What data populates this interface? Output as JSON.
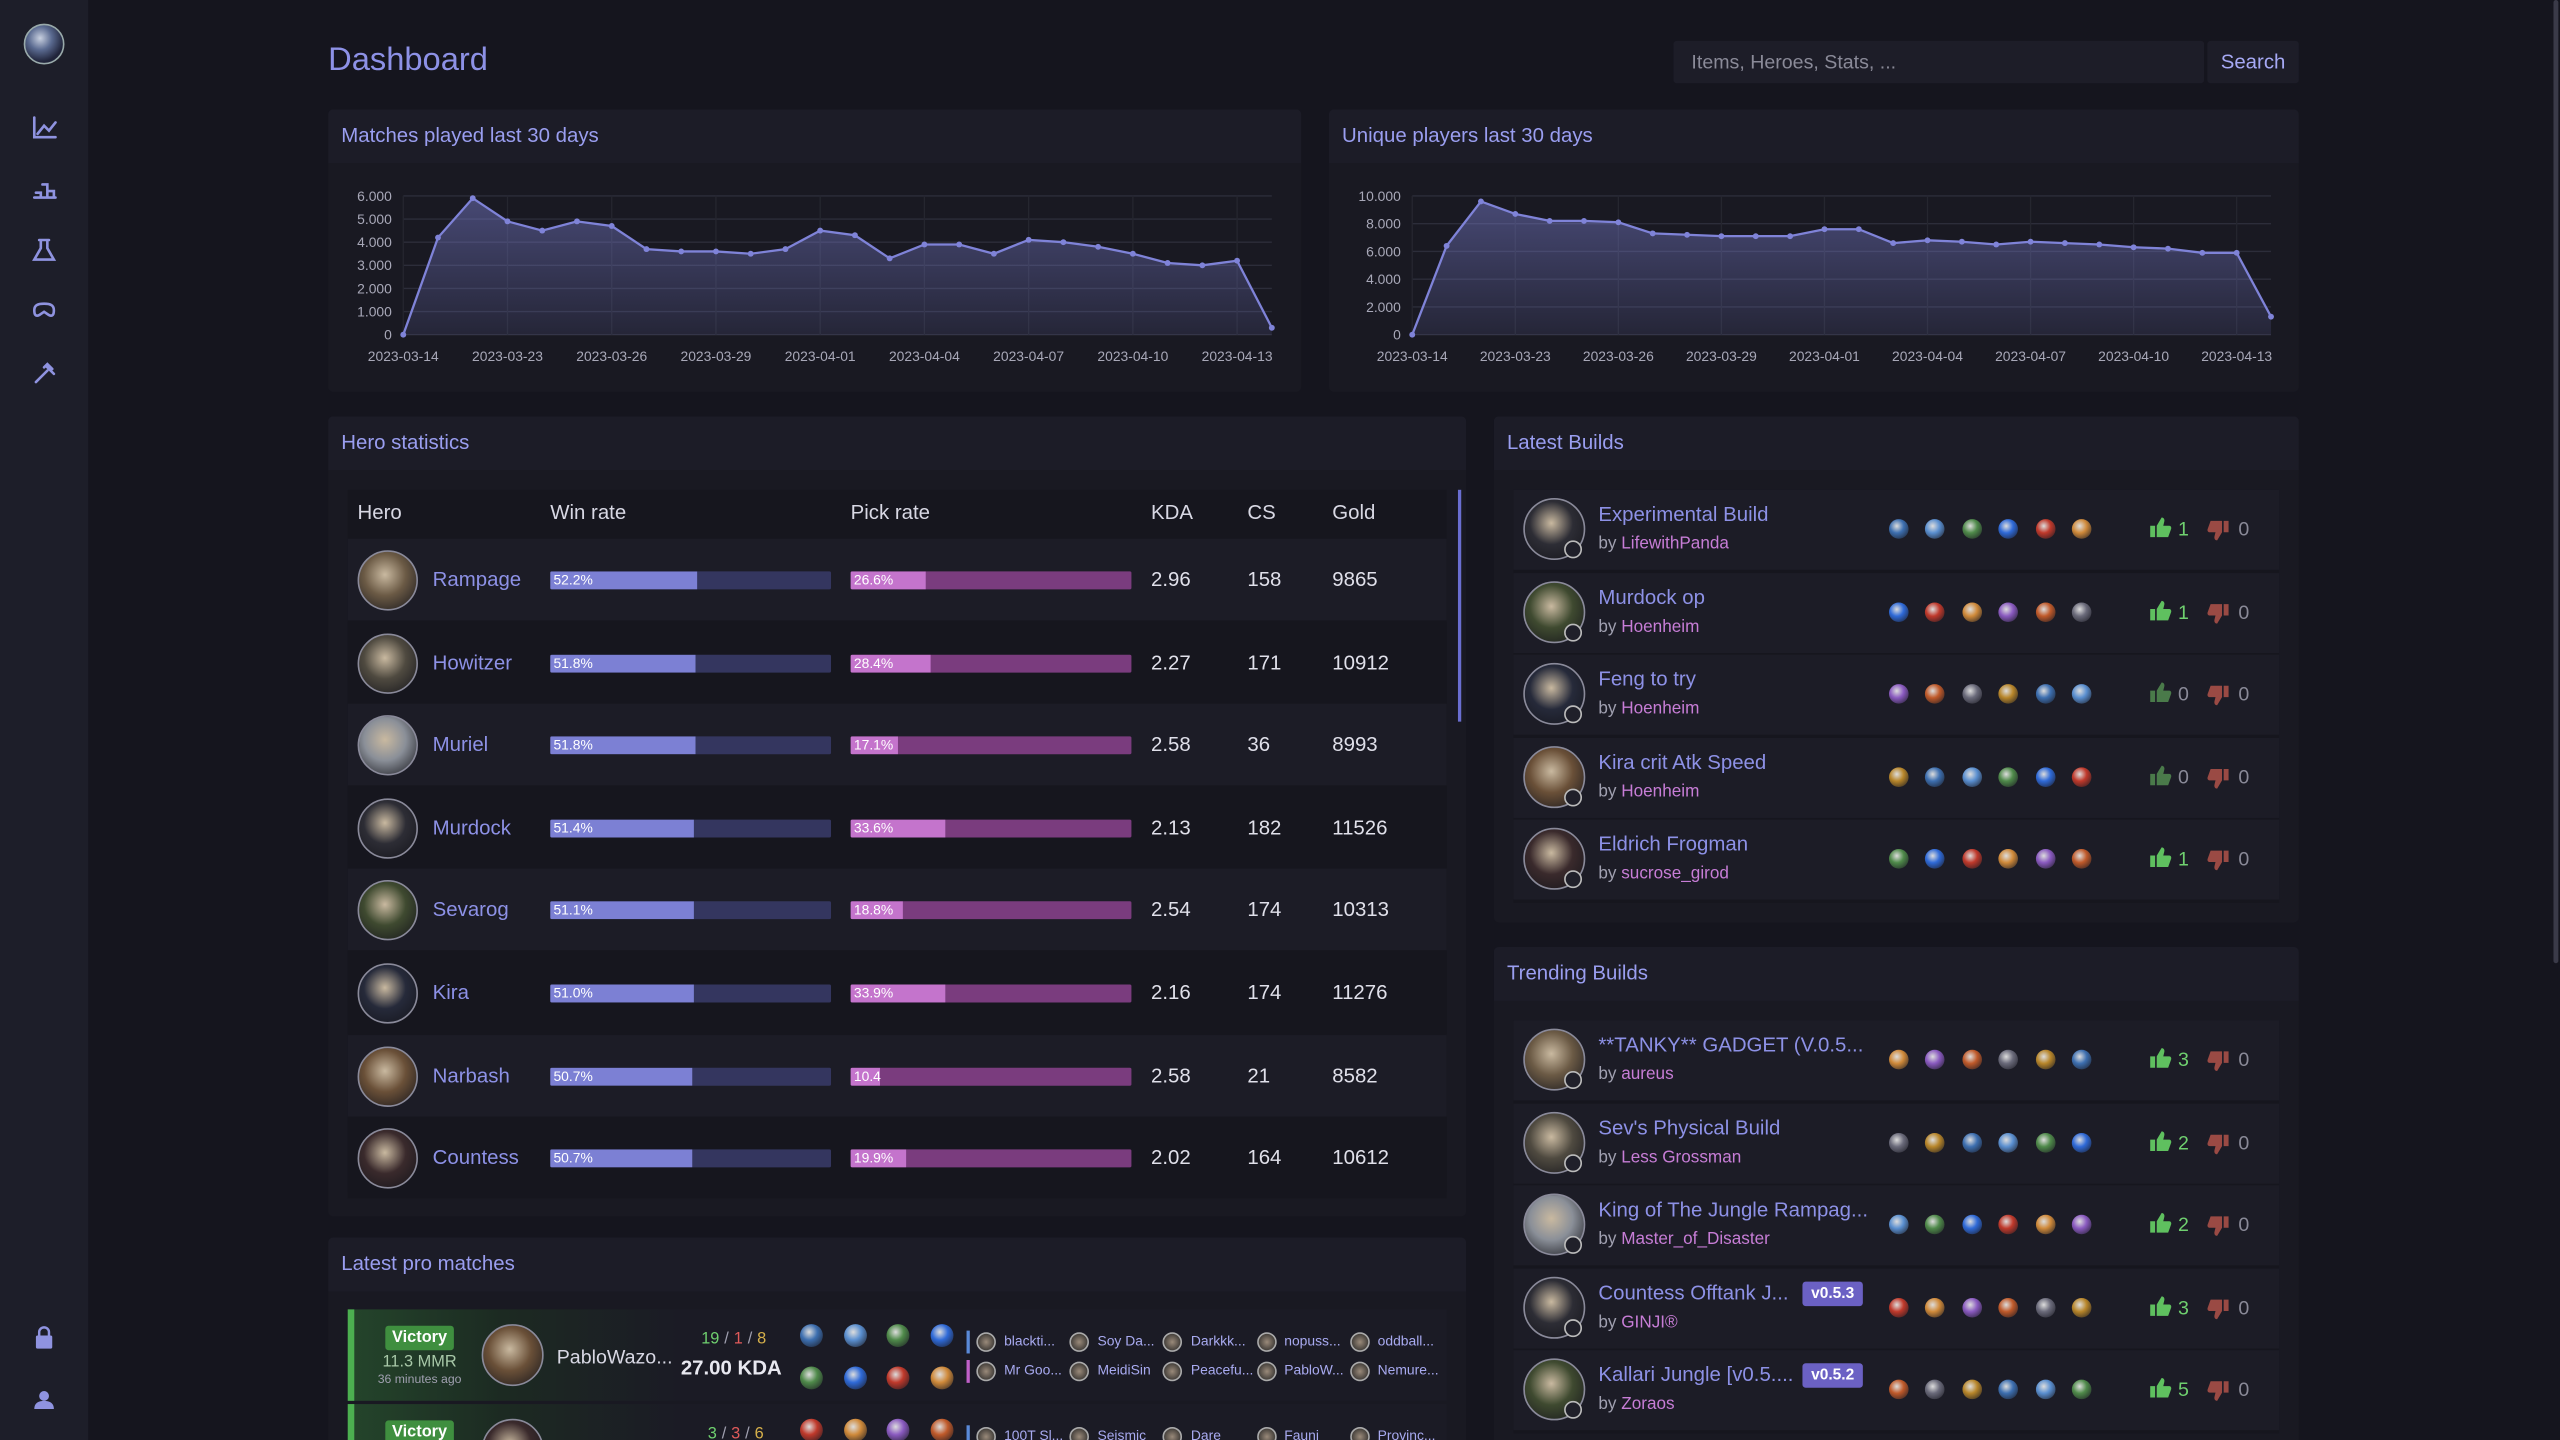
{
  "header": {
    "title": "Dashboard",
    "search_placeholder": "Items, Heroes, Stats, ...",
    "search_button": "Search"
  },
  "chart_data": [
    {
      "type": "area",
      "title": "Matches played last 30 days",
      "color": "#7f83d8",
      "grid": true,
      "categories": [
        "2023-03-14",
        null,
        null,
        "2023-03-23",
        null,
        null,
        "2023-03-26",
        null,
        null,
        "2023-03-29",
        null,
        null,
        "2023-04-01",
        null,
        null,
        "2023-04-04",
        null,
        null,
        "2023-04-07",
        null,
        null,
        "2023-04-10",
        null,
        null,
        "2023-04-13",
        null
      ],
      "values": [
        0,
        4200,
        5900,
        4900,
        4500,
        4900,
        4700,
        3700,
        3600,
        3600,
        3500,
        3700,
        4500,
        4300,
        3300,
        3900,
        3900,
        3500,
        4100,
        4000,
        3800,
        3500,
        3100,
        3000,
        3200,
        300
      ],
      "ylim": [
        0,
        6000
      ],
      "yticks": [
        0,
        {
          "value": 1000,
          "label": "1.000"
        },
        {
          "value": 2000,
          "label": "2.000"
        },
        {
          "value": 3000,
          "label": "3.000"
        },
        {
          "value": 4000,
          "label": "4.000"
        },
        {
          "value": 5000,
          "label": "5.000"
        },
        {
          "value": 6000,
          "label": "6.000"
        }
      ]
    },
    {
      "type": "area",
      "title": "Unique players last 30 days",
      "color": "#7f83d8",
      "grid": true,
      "categories": [
        "2023-03-14",
        null,
        null,
        "2023-03-23",
        null,
        null,
        "2023-03-26",
        null,
        null,
        "2023-03-29",
        null,
        null,
        "2023-04-01",
        null,
        null,
        "2023-04-04",
        null,
        null,
        "2023-04-07",
        null,
        null,
        "2023-04-10",
        null,
        null,
        "2023-04-13",
        null
      ],
      "values": [
        0,
        6400,
        9600,
        8700,
        8200,
        8200,
        8100,
        7300,
        7200,
        7100,
        7100,
        7100,
        7600,
        7600,
        6600,
        6800,
        6700,
        6500,
        6700,
        6600,
        6500,
        6300,
        6200,
        5900,
        5900,
        1300
      ],
      "ylim": [
        0,
        10000
      ],
      "yticks": [
        0,
        {
          "value": 2000,
          "label": "2.000"
        },
        {
          "value": 4000,
          "label": "4.000"
        },
        {
          "value": 6000,
          "label": "6.000"
        },
        {
          "value": 8000,
          "label": "8.000"
        },
        {
          "value": 10000,
          "label": "10.000"
        }
      ]
    }
  ],
  "hero_statistics": {
    "title": "Hero statistics",
    "columns": [
      "Hero",
      "Win rate",
      "Pick rate",
      "KDA",
      "CS",
      "Gold"
    ],
    "rows": [
      {
        "hero": "Rampage",
        "win_rate": {
          "value": 52.2,
          "label": "52.2%"
        },
        "pick_rate": {
          "value": 26.6,
          "label": "26.6%"
        },
        "kda": 2.96,
        "cs": 158,
        "gold": 9865
      },
      {
        "hero": "Howitzer",
        "win_rate": {
          "value": 51.8,
          "label": "51.8%"
        },
        "pick_rate": {
          "value": 28.4,
          "label": "28.4%"
        },
        "kda": 2.27,
        "cs": 171,
        "gold": 10912
      },
      {
        "hero": "Muriel",
        "win_rate": {
          "value": 51.8,
          "label": "51.8%"
        },
        "pick_rate": {
          "value": 17.1,
          "label": "17.1%"
        },
        "kda": 2.58,
        "cs": 36,
        "gold": 8993
      },
      {
        "hero": "Murdock",
        "win_rate": {
          "value": 51.4,
          "label": "51.4%"
        },
        "pick_rate": {
          "value": 33.6,
          "label": "33.6%"
        },
        "kda": 2.13,
        "cs": 182,
        "gold": 11526
      },
      {
        "hero": "Sevarog",
        "win_rate": {
          "value": 51.1,
          "label": "51.1%"
        },
        "pick_rate": {
          "value": 18.8,
          "label": "18.8%"
        },
        "kda": 2.54,
        "cs": 174,
        "gold": 10313
      },
      {
        "hero": "Kira",
        "win_rate": {
          "value": 51,
          "label": "51.0%"
        },
        "pick_rate": {
          "value": 33.9,
          "label": "33.9%"
        },
        "kda": 2.16,
        "cs": 174,
        "gold": 11276
      },
      {
        "hero": "Narbash",
        "win_rate": {
          "value": 50.7,
          "label": "50.7%"
        },
        "pick_rate": {
          "value": 10.4,
          "label": "10.4"
        },
        "kda": 2.58,
        "cs": 21,
        "gold": 8582
      },
      {
        "hero": "Countess",
        "win_rate": {
          "value": 50.7,
          "label": "50.7%"
        },
        "pick_rate": {
          "value": 19.9,
          "label": "19.9%"
        },
        "kda": 2.02,
        "cs": 164,
        "gold": 10612
      }
    ]
  },
  "by": "by",
  "latest_builds": {
    "title": "Latest Builds",
    "builds": [
      {
        "name": "Experimental Build",
        "author": "LifewithPanda",
        "upvotes": 1,
        "downvotes": 0
      },
      {
        "name": "Murdock op",
        "author": "Hoenheim",
        "upvotes": 1,
        "downvotes": 0
      },
      {
        "name": "Feng to try",
        "author": "Hoenheim",
        "upvotes": 0,
        "downvotes": 0
      },
      {
        "name": "Kira crit Atk Speed",
        "author": "Hoenheim",
        "upvotes": 0,
        "downvotes": 0
      },
      {
        "name": "Eldrich Frogman",
        "author": "sucrose_girod",
        "upvotes": 1,
        "downvotes": 0
      }
    ]
  },
  "trending_builds": {
    "title": "Trending Builds",
    "builds": [
      {
        "name": "**TANKY** GADGET (V.0.5...",
        "author": "aureus",
        "upvotes": 3,
        "downvotes": 0
      },
      {
        "name": "Sev's Physical Build",
        "author": "Less Grossman",
        "upvotes": 2,
        "downvotes": 0
      },
      {
        "name": "King of The Jungle Rampag...",
        "author": "Master_of_Disaster",
        "upvotes": 2,
        "downvotes": 0
      },
      {
        "name": "Countess Offtank J...",
        "author": "GINJI®",
        "version": "v0.5.3",
        "upvotes": 3,
        "downvotes": 0
      },
      {
        "name": "Kallari Jungle [v0.5....",
        "author": "Zoraos",
        "version": "v0.5.2",
        "upvotes": 5,
        "downvotes": 0
      }
    ]
  },
  "pro_matches": {
    "title": "Latest pro matches",
    "separator": "/",
    "matches": [
      {
        "result": "Victory",
        "mmr": "11.3 MMR",
        "time": "36 minutes ago",
        "player": "PabloWazo...",
        "kills": 19,
        "deaths": 1,
        "assists": 8,
        "kda": "27.00 KDA",
        "team": [
          "blackti...",
          "Soy Da...",
          "Darkkk...",
          "nopuss...",
          "oddball..."
        ],
        "enemy": [
          "Mr Goo...",
          "MeidiSin",
          "Peacefu...",
          "PabloW...",
          "Nemure..."
        ]
      },
      {
        "result": "Victory",
        "kills": 3,
        "deaths": 3,
        "assists": 6,
        "team": [
          "100T Sl...",
          "Seismic",
          "Dare",
          "Fauni",
          "Provinc..."
        ]
      }
    ]
  }
}
